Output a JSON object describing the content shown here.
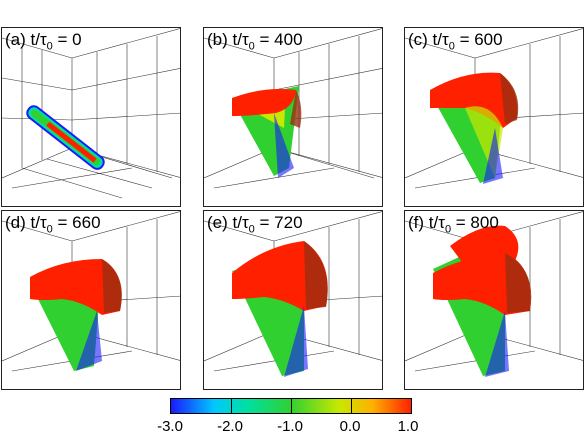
{
  "panels": [
    {
      "prefix": "(a) t/τ",
      "sub": "0",
      "suffix": " = 0"
    },
    {
      "prefix": "(b) t/τ",
      "sub": "0",
      "suffix": " = 400"
    },
    {
      "prefix": "(c) t/τ",
      "sub": "0",
      "suffix": " = 600"
    },
    {
      "prefix": "(d) t/τ",
      "sub": "0",
      "suffix": " = 660"
    },
    {
      "prefix": "(e) t/τ",
      "sub": "0",
      "suffix": " = 720"
    },
    {
      "prefix": "(f) t/τ",
      "sub": "0",
      "suffix": " = 800"
    }
  ],
  "colorbar": {
    "ticks": [
      "-3.0",
      "-2.0",
      "-1.0",
      "0.0",
      "1.0"
    ],
    "colors": [
      "#1a1aff",
      "#00c8ff",
      "#30d030",
      "#c8e800",
      "#ff2000"
    ]
  }
}
